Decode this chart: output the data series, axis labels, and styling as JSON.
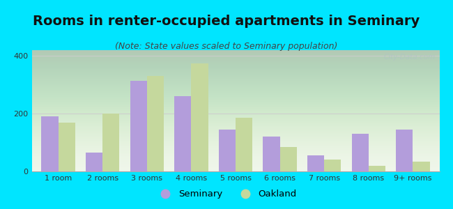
{
  "title": "Rooms in renter-occupied apartments in Seminary",
  "subtitle": "(Note: State values scaled to Seminary population)",
  "categories": [
    "1 room",
    "2 rooms",
    "3 rooms",
    "4 rooms",
    "5 rooms",
    "6 rooms",
    "7 rooms",
    "8 rooms",
    "9+ rooms"
  ],
  "seminary_values": [
    190,
    65,
    315,
    260,
    145,
    120,
    55,
    130,
    145
  ],
  "oakland_values": [
    170,
    200,
    330,
    375,
    185,
    85,
    40,
    20,
    35
  ],
  "seminary_color": "#b39ddb",
  "oakland_color": "#c5d89d",
  "background_outer": "#00e5ff",
  "ylim": [
    0,
    420
  ],
  "yticks": [
    0,
    200,
    400
  ],
  "bar_width": 0.38,
  "legend_seminary": "Seminary",
  "legend_oakland": "Oakland",
  "title_fontsize": 14,
  "subtitle_fontsize": 9,
  "tick_fontsize": 8,
  "watermark": "City-Data.com"
}
